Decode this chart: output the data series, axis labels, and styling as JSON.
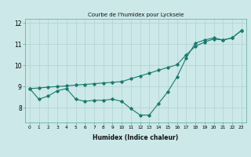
{
  "title": "Courbe de l'humidex pour Lycksele",
  "xlabel": "Humidex (Indice chaleur)",
  "ylabel": "",
  "bg_color": "#cce8e8",
  "line_color": "#1a7a6e",
  "grid_color": "#aacccc",
  "x_data": [
    0,
    1,
    2,
    3,
    4,
    5,
    6,
    7,
    8,
    9,
    10,
    11,
    12,
    13,
    14,
    15,
    16,
    17,
    18,
    19,
    20,
    21,
    22,
    23
  ],
  "y_data": [
    8.9,
    8.4,
    8.55,
    8.8,
    8.9,
    8.4,
    8.3,
    8.35,
    8.35,
    8.4,
    8.3,
    7.95,
    7.65,
    7.65,
    8.2,
    8.75,
    9.45,
    10.35,
    11.05,
    11.2,
    11.3,
    11.2,
    11.3,
    11.65
  ],
  "y2_data": [
    8.9,
    8.93,
    8.97,
    9.0,
    9.03,
    9.07,
    9.1,
    9.13,
    9.17,
    9.2,
    9.23,
    9.37,
    9.5,
    9.63,
    9.77,
    9.9,
    10.03,
    10.5,
    10.9,
    11.1,
    11.25,
    11.2,
    11.3,
    11.65
  ],
  "xlim": [
    -0.5,
    23.5
  ],
  "ylim": [
    7.3,
    12.2
  ],
  "yticks": [
    8,
    9,
    10,
    11,
    12
  ],
  "xticks": [
    0,
    1,
    2,
    3,
    4,
    5,
    6,
    7,
    8,
    9,
    10,
    11,
    12,
    13,
    14,
    15,
    16,
    17,
    18,
    19,
    20,
    21,
    22,
    23
  ],
  "xlabel_fontsize": 5.5,
  "ytick_fontsize": 5.5,
  "xtick_fontsize": 4.2,
  "linewidth": 0.8,
  "markersize": 1.8
}
